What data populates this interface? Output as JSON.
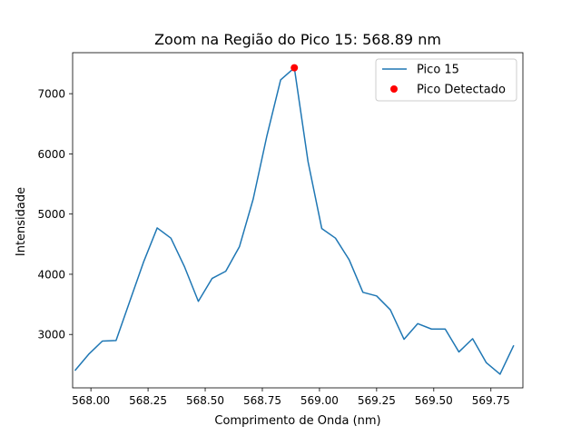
{
  "chart_data": {
    "type": "line",
    "title": "Zoom na Região do Pico 15: 568.89 nm",
    "xlabel": "Comprimento de Onda (nm)",
    "ylabel": "Intensidade",
    "xlim": [
      567.92,
      569.89
    ],
    "ylim": [
      2113,
      7681
    ],
    "x_ticks": [
      568.0,
      568.25,
      568.5,
      568.75,
      569.0,
      569.25,
      569.5,
      569.75
    ],
    "x_tick_labels": [
      "568.00",
      "568.25",
      "568.50",
      "568.75",
      "569.00",
      "569.25",
      "569.50",
      "569.75"
    ],
    "y_ticks": [
      3000,
      4000,
      5000,
      6000,
      7000
    ],
    "y_tick_labels": [
      "3000",
      "4000",
      "5000",
      "6000",
      "7000"
    ],
    "grid": false,
    "legend_position": "top-right",
    "series": [
      {
        "name": "Pico 15",
        "type": "line",
        "color": "#1f77b4",
        "x": [
          567.93,
          567.99,
          568.05,
          568.11,
          568.17,
          568.23,
          568.29,
          568.35,
          568.41,
          568.47,
          568.53,
          568.59,
          568.65,
          568.71,
          568.77,
          568.83,
          568.89,
          568.95,
          569.01,
          569.07,
          569.13,
          569.19,
          569.25,
          569.31,
          569.37,
          569.43,
          569.49,
          569.55,
          569.61,
          569.67,
          569.73,
          569.79,
          569.85
        ],
        "y": [
          2400,
          2670,
          2890,
          2900,
          3550,
          4200,
          4770,
          4600,
          4120,
          3550,
          3930,
          4050,
          4460,
          5250,
          6300,
          7230,
          7430,
          5870,
          4760,
          4600,
          4240,
          3700,
          3640,
          3410,
          2920,
          3180,
          3090,
          3090,
          2710,
          2930,
          2530,
          2340,
          2820
        ]
      },
      {
        "name": "Pico Detectado",
        "type": "scatter",
        "color": "#ff0000",
        "x": [
          568.89
        ],
        "y": [
          7430
        ]
      }
    ]
  }
}
